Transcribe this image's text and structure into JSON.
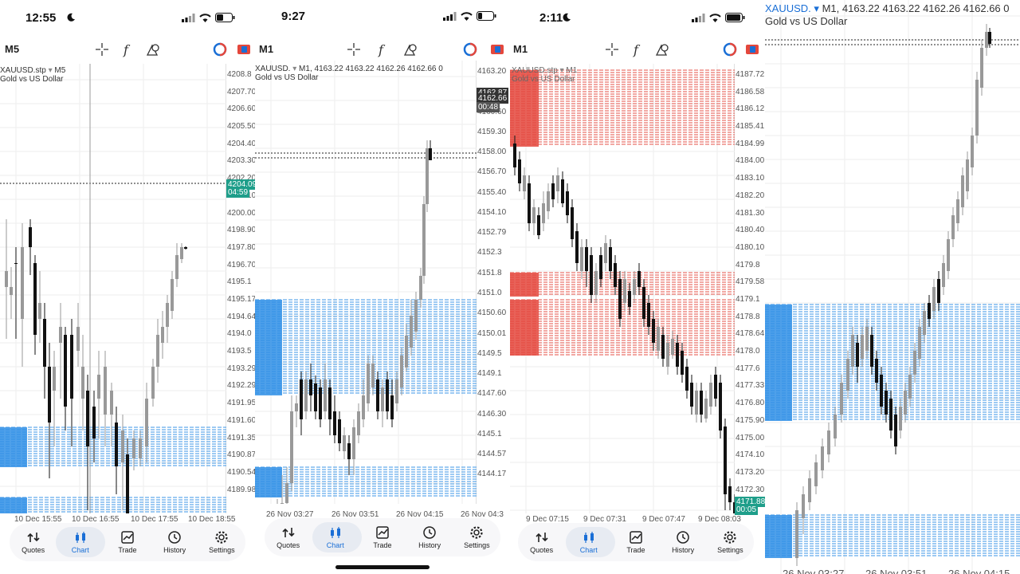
{
  "panels": [
    {
      "status_time": "12:55",
      "timeframe": "M5",
      "symbol": "XAUUSD.stp",
      "symbol_tf": "M5",
      "ohlc": "",
      "description": "Gold vs US Dollar",
      "price_labels": [
        "4208.8",
        "4207.70",
        "4206.60",
        "4205.50",
        "4204.40",
        "4203.30",
        "4202.20",
        "4201.10",
        "4200.00",
        "4198.90",
        "4197.80",
        "4196.70",
        "4195.1",
        "4195.17",
        "4194.64",
        "4194.0",
        "4193.5",
        "4193.29",
        "4192.29",
        "4191.95",
        "4191.60",
        "4191.35",
        "4190.87",
        "4190.54",
        "4189.98"
      ],
      "price_tag": "4204.09",
      "countdown": "04:59",
      "x_labels": [
        "10 Dec 15:55",
        "10 Dec 16:55",
        "10 Dec 17:55",
        "10 Dec 18:55"
      ]
    },
    {
      "status_time": "9:27",
      "timeframe": "M1",
      "symbol": "XAUUSD.",
      "symbol_tf": "M1",
      "ohlc": "4163.22 4163.22 4162.26 4162.66 0",
      "description": "Gold vs US Dollar",
      "price_labels": [
        "4163.20",
        "4161.90",
        "4160.60",
        "4159.30",
        "4158.00",
        "4156.70",
        "4155.40",
        "4154.10",
        "4152.79",
        "4152.3",
        "4151.8",
        "4151.0",
        "4150.60",
        "4150.01",
        "4149.5",
        "4149.1",
        "4147.60",
        "4146.30",
        "4145.1",
        "4144.57",
        "4144.17"
      ],
      "price_tag": "4162.66",
      "price_tag_top": "4162.87",
      "countdown": "00:48",
      "x_labels": [
        "26 Nov 03:27",
        "26 Nov 03:51",
        "26 Nov 04:15",
        "26 Nov 04:3"
      ]
    },
    {
      "status_time": "2:11",
      "timeframe": "M1",
      "symbol": "XAUUSD.stp",
      "symbol_tf": "M1",
      "ohlc": "",
      "description": "Gold vs US Dollar",
      "price_labels": [
        "4187.72",
        "4186.58",
        "4186.12",
        "4185.41",
        "4184.99",
        "4184.00",
        "4183.10",
        "4182.20",
        "4181.30",
        "4180.40",
        "4180.10",
        "4179.8",
        "4179.58",
        "4179.1",
        "4178.8",
        "4178.64",
        "4178.0",
        "4177.6",
        "4177.33",
        "4176.80",
        "4175.90",
        "4175.00",
        "4174.10",
        "4173.20",
        "4172.30"
      ],
      "price_tag": "4171.88",
      "countdown": "00:05",
      "x_labels": [
        "9 Dec 07:15",
        "9 Dec 07:31",
        "9 Dec 07:47",
        "9 Dec 08:03"
      ]
    },
    {
      "status_time": "",
      "timeframe": "",
      "symbol": "XAUUSD.",
      "symbol_tf": "M1",
      "ohlc": "4163.22 4163.22 4162.26 4162.66 0",
      "description": "Gold vs US Dollar",
      "price_labels": [],
      "x_labels": [
        "26 Nov 03:27",
        "26 Nov 03:51",
        "26 Nov 04:15"
      ]
    }
  ],
  "nav": {
    "items": [
      {
        "label": "Quotes",
        "icon": "quotes-icon"
      },
      {
        "label": "Chart",
        "icon": "chart-icon"
      },
      {
        "label": "Trade",
        "icon": "trade-icon"
      },
      {
        "label": "History",
        "icon": "history-icon"
      },
      {
        "label": "Settings",
        "icon": "settings-icon"
      }
    ]
  },
  "colors": {
    "accent": "#1a6fd6",
    "buy_zone": "#2f8fe6",
    "sell_zone": "#e4473c",
    "bid_tag": "#1f9e8a",
    "dark_tag": "#333333",
    "grid": "#eeeeee"
  }
}
